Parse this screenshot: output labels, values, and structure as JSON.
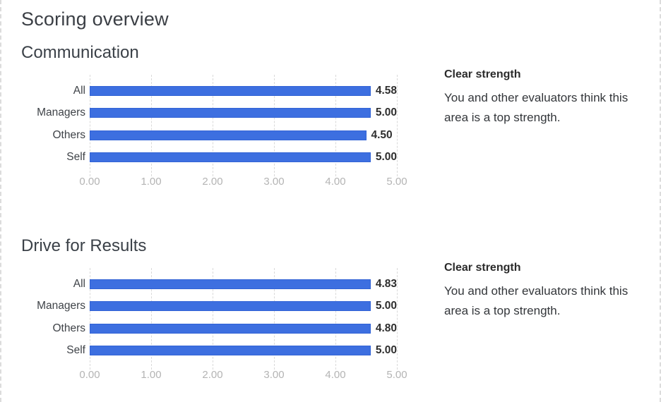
{
  "page": {
    "title": "Scoring overview"
  },
  "sections": [
    {
      "title": "Communication",
      "note": {
        "heading": "Clear strength",
        "body": "You and other evaluators think this area is a top strength."
      }
    },
    {
      "title": "Drive for Results",
      "note": {
        "heading": "Clear strength",
        "body": "You and other evaluators think this area is a top strength."
      }
    }
  ],
  "chart_data": [
    {
      "type": "bar",
      "orientation": "horizontal",
      "title": "Communication",
      "categories": [
        "All",
        "Managers",
        "Others",
        "Self"
      ],
      "values": [
        4.58,
        5.0,
        4.5,
        5.0
      ],
      "value_labels": [
        "4.58",
        "5.00",
        "4.50",
        "5.00"
      ],
      "xlim": [
        0,
        5
      ],
      "x_ticks": [
        "0.00",
        "1.00",
        "2.00",
        "3.00",
        "4.00",
        "5.00"
      ],
      "grid": "vertical-dashed",
      "bar_color": "#3d6fe0"
    },
    {
      "type": "bar",
      "orientation": "horizontal",
      "title": "Drive for Results",
      "categories": [
        "All",
        "Managers",
        "Others",
        "Self"
      ],
      "values": [
        4.83,
        5.0,
        4.8,
        5.0
      ],
      "value_labels": [
        "4.83",
        "5.00",
        "4.80",
        "5.00"
      ],
      "xlim": [
        0,
        5
      ],
      "x_ticks": [
        "0.00",
        "1.00",
        "2.00",
        "3.00",
        "4.00",
        "5.00"
      ],
      "grid": "vertical-dashed",
      "bar_color": "#3d6fe0"
    }
  ],
  "colors": {
    "bar": "#3d6fe0",
    "axis_label": "#b4b4b4",
    "gridline": "#d9d9d9",
    "heading": "#3b4148",
    "value_label": "#2e2e2e"
  }
}
